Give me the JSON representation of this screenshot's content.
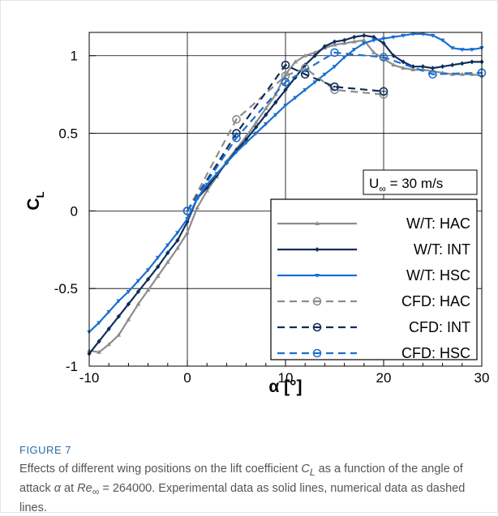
{
  "chart_data": {
    "type": "line",
    "title": "",
    "xlabel": "α [°]",
    "ylabel": "C",
    "ylabel_subscript": "L",
    "xlim": [
      -10,
      30
    ],
    "ylim": [
      -1,
      1.15
    ],
    "xticks": [
      "-10",
      "0",
      "10",
      "20",
      "30"
    ],
    "yticks": [
      "-1",
      "-0.5",
      "0",
      "0.5",
      "1"
    ],
    "grid": true,
    "legend_placement": "bottom-right",
    "annotation": {
      "main": "U",
      "subscript": "∞",
      "rest": " = 30 m/s"
    },
    "series": [
      {
        "name": "W/T: HAC",
        "style": "solid",
        "marker": "triangle-up",
        "color": "#8c8c8c",
        "x": [
          -10,
          -9,
          -8,
          -7,
          -6,
          -5,
          -4,
          -3,
          -2,
          -1,
          0,
          1,
          2,
          3,
          4,
          5,
          6,
          7,
          8,
          9,
          10,
          11,
          12,
          13,
          14,
          15,
          16,
          17,
          18,
          19,
          20,
          21,
          22,
          23,
          24,
          25,
          26,
          27,
          28,
          29,
          30
        ],
        "y": [
          -0.9,
          -0.91,
          -0.86,
          -0.8,
          -0.7,
          -0.6,
          -0.51,
          -0.42,
          -0.33,
          -0.24,
          -0.14,
          0.02,
          0.13,
          0.22,
          0.32,
          0.4,
          0.48,
          0.57,
          0.66,
          0.75,
          0.88,
          0.96,
          1.0,
          1.02,
          1.05,
          1.07,
          1.08,
          1.09,
          1.1,
          1.02,
          0.98,
          0.94,
          0.92,
          0.91,
          0.91,
          0.9,
          0.89,
          0.88,
          0.88,
          0.88,
          0.87
        ]
      },
      {
        "name": "W/T: INT",
        "style": "solid",
        "marker": "diamond",
        "color": "#0f2d5c",
        "x": [
          -10,
          -9,
          -8,
          -7,
          -6,
          -5,
          -4,
          -3,
          -2,
          -1,
          0,
          1,
          2,
          3,
          4,
          5,
          6,
          7,
          8,
          9,
          10,
          11,
          12,
          13,
          14,
          15,
          16,
          17,
          18,
          19,
          20,
          21,
          22,
          23,
          24,
          25,
          26,
          27,
          28,
          29,
          30
        ],
        "y": [
          -0.92,
          -0.84,
          -0.76,
          -0.68,
          -0.6,
          -0.52,
          -0.44,
          -0.36,
          -0.27,
          -0.19,
          -0.07,
          0.08,
          0.15,
          0.23,
          0.31,
          0.39,
          0.46,
          0.54,
          0.62,
          0.7,
          0.78,
          0.86,
          0.94,
          1.0,
          1.06,
          1.09,
          1.1,
          1.12,
          1.13,
          1.12,
          1.08,
          1.0,
          0.96,
          0.93,
          0.93,
          0.92,
          0.93,
          0.94,
          0.95,
          0.96,
          0.96
        ]
      },
      {
        "name": "W/T: HSC",
        "style": "solid",
        "marker": "triangle-down",
        "color": "#1a6fd1",
        "x": [
          -10,
          -9,
          -8,
          -7,
          -6,
          -5,
          -4,
          -3,
          -2,
          -1,
          0,
          1,
          2,
          3,
          4,
          5,
          6,
          7,
          8,
          9,
          10,
          11,
          12,
          13,
          14,
          15,
          16,
          17,
          18,
          19,
          20,
          21,
          22,
          23,
          24,
          25,
          26,
          27,
          28,
          29,
          30
        ],
        "y": [
          -0.78,
          -0.72,
          -0.65,
          -0.58,
          -0.52,
          -0.45,
          -0.38,
          -0.3,
          -0.22,
          -0.14,
          -0.05,
          0.08,
          0.17,
          0.24,
          0.31,
          0.38,
          0.44,
          0.5,
          0.56,
          0.62,
          0.68,
          0.73,
          0.78,
          0.83,
          0.88,
          0.93,
          0.99,
          1.04,
          1.08,
          1.1,
          1.11,
          1.12,
          1.13,
          1.14,
          1.14,
          1.13,
          1.1,
          1.05,
          1.04,
          1.04,
          1.05
        ]
      },
      {
        "name": "CFD: HAC",
        "style": "dashed",
        "marker": "circle",
        "color": "#8c8c8c",
        "x": [
          0,
          5,
          10,
          12,
          15,
          20
        ],
        "y": [
          0.0,
          0.59,
          0.87,
          0.92,
          0.78,
          0.75
        ]
      },
      {
        "name": "CFD: INT",
        "style": "dashed",
        "marker": "circle",
        "color": "#0f2d5c",
        "x": [
          0,
          5,
          10,
          12,
          15,
          20
        ],
        "y": [
          0.0,
          0.5,
          0.94,
          0.88,
          0.8,
          0.77
        ]
      },
      {
        "name": "CFD: HSC",
        "style": "dashed",
        "marker": "circle",
        "color": "#1a6fd1",
        "x": [
          0,
          5,
          10,
          15,
          20,
          25,
          30
        ],
        "y": [
          0.0,
          0.47,
          0.83,
          1.02,
          0.99,
          0.88,
          0.89
        ]
      }
    ]
  },
  "caption": {
    "label": "FIGURE 7",
    "text": "Effects of different wing positions on the lift coefficient C_L as a function of the angle of attack α at Re_∞ = 264000. Experimental data as solid lines, numerical data as dashed lines.",
    "segments": [
      {
        "t": "Effects of different wing positions on the lift coefficient "
      },
      {
        "t": "C",
        "i": true
      },
      {
        "t": "L",
        "sub": true,
        "i": true
      },
      {
        "t": " as a function of the angle of attack "
      },
      {
        "t": "α",
        "i": true
      },
      {
        "t": " at "
      },
      {
        "t": "Re",
        "i": true
      },
      {
        "t": "∞",
        "sub": true
      },
      {
        "t": " = 264000. Experimental data as solid lines, numerical data as dashed lines."
      }
    ]
  }
}
